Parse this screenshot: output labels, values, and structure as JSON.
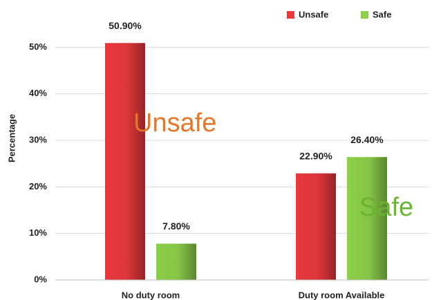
{
  "chart_data": {
    "type": "bar",
    "y_label": "Percentage",
    "categories": [
      "No duty room",
      "Duty room Available"
    ],
    "series": [
      {
        "name": "Unsafe",
        "color": "#e8383c",
        "values": [
          50.9,
          22.9
        ],
        "value_labels": [
          "50.90%",
          "22.90%"
        ]
      },
      {
        "name": "Safe",
        "color": "#8ccf4a",
        "values": [
          7.8,
          26.4
        ],
        "value_labels": [
          "7.80%",
          "26.40%"
        ]
      }
    ],
    "annotations": [
      {
        "text": "Unsafe",
        "color": "#e2772b"
      },
      {
        "text": "Safe",
        "color": "#6bb333"
      }
    ],
    "ylim": [
      0,
      60
    ],
    "yticks": [
      {
        "value": 0,
        "label": "0%"
      },
      {
        "value": 10,
        "label": "10%"
      },
      {
        "value": 20,
        "label": "20%"
      },
      {
        "value": 30,
        "label": "30%"
      },
      {
        "value": 40,
        "label": "40%"
      },
      {
        "value": 50,
        "label": "50%"
      }
    ],
    "grid": true,
    "legend": "top-right"
  }
}
